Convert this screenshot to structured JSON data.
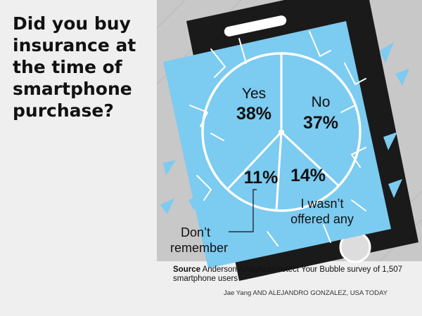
{
  "title": "Did you buy insurance at the time of smartphone purchase?",
  "chart_data": {
    "type": "pie",
    "title": "Did you buy insurance at the time of smartphone purchase?",
    "slices": [
      {
        "label": "Yes",
        "value": 38,
        "value_label": "38%"
      },
      {
        "label": "No",
        "value": 37,
        "value_label": "37%"
      },
      {
        "label": "I wasn't offered any",
        "value": 14,
        "value_label": "14%"
      },
      {
        "label": "Don't remember",
        "value": 11,
        "value_label": "11%"
      }
    ]
  },
  "labels": {
    "yes": "Yes",
    "yes_pct": "38%",
    "no": "No",
    "no_pct": "37%",
    "not_offered_pct": "14%",
    "not_offered_line1": "I wasn’t",
    "not_offered_line2": "offered any",
    "dont_remember_pct": "11%",
    "dont_remember_line1": "Don’t",
    "dont_remember_line2": "remember"
  },
  "source": {
    "label": "Source",
    "text": "Anderson Analytics/Protect Your Bubble survey of 1,507 smartphone users"
  },
  "credit": "Jae Yang AND ALEJANDRO GONZALEZ, USA TODAY",
  "colors": {
    "background": "#efefef",
    "panel": "#c8c8c8",
    "phone_body": "#1a1a1a",
    "screen": "#7ccbf0",
    "crack": "#ffffff",
    "text": "#111111"
  }
}
